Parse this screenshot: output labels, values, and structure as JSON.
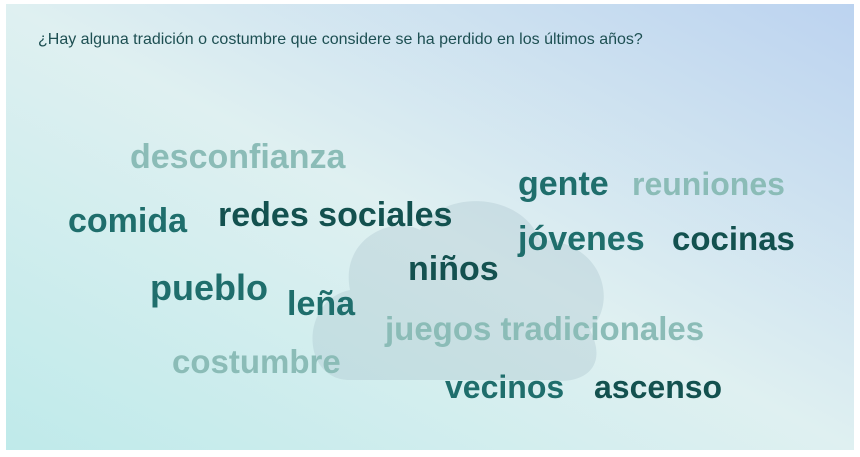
{
  "question": "¿Hay alguna tradición o costumbre que considere se ha perdido en los últimos años?",
  "words": [
    "desconfianza",
    "gente",
    "reuniones",
    "comida",
    "redes sociales",
    "jóvenes",
    "cocinas",
    "niños",
    "pueblo",
    "leña",
    "juegos tradicionales",
    "costumbre",
    "vecinos",
    "ascenso"
  ]
}
